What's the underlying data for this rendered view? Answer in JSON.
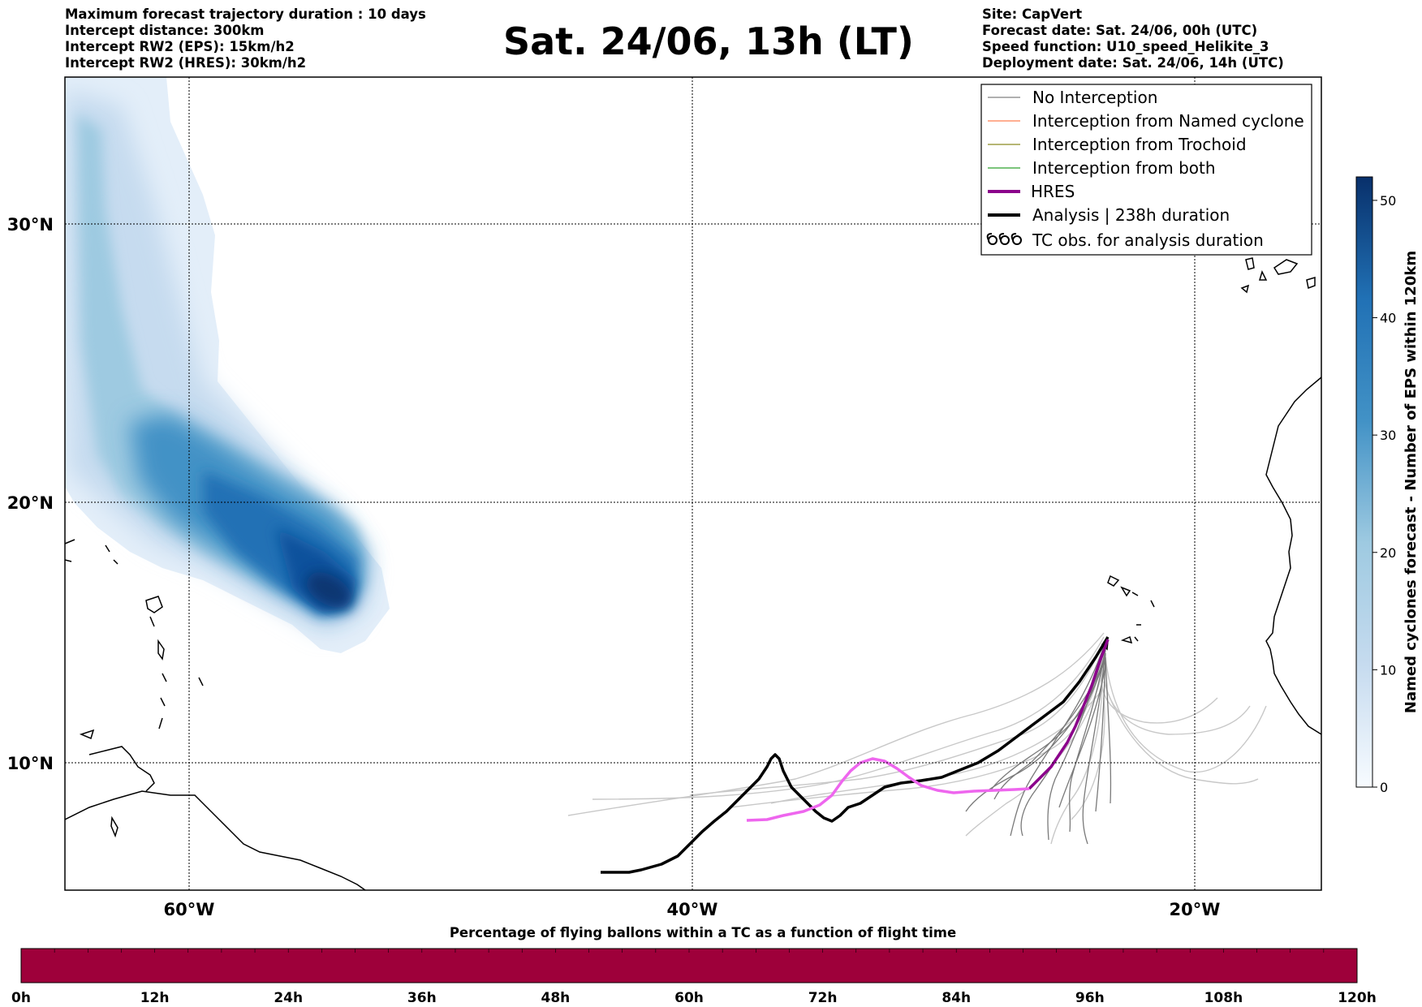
{
  "title": "Sat. 24/06, 13h (LT)",
  "info_left": [
    "Maximum forecast trajectory duration : 10 days",
    "Intercept distance: 300km",
    "Intercept RW2 (EPS):  15km/h2",
    "Intercept RW2 (HRES): 30km/h2"
  ],
  "info_right": [
    "Site: CapVert",
    "Forecast date: Sat. 24/06, 00h (UTC)",
    "Speed function: U10_speed_Helikite_3",
    "Deployment date: Sat. 24/06, 14h (UTC)"
  ],
  "map": {
    "lon_ticks": [
      {
        "value": -60,
        "label": "60°W"
      },
      {
        "value": -40,
        "label": "40°W"
      },
      {
        "value": -20,
        "label": "20°W"
      }
    ],
    "lat_ticks": [
      {
        "value": 30,
        "label": "30°N"
      },
      {
        "value": 20,
        "label": "20°N"
      },
      {
        "value": 10,
        "label": "10°N"
      }
    ],
    "lon_range": [
      -65,
      -15
    ],
    "lat_range": [
      5.4,
      34.8
    ],
    "grid": "dotted",
    "colors": {
      "no_interception": "#808080",
      "named_cyclone": "#ff7f50",
      "trochoid": "#8b8b22",
      "both": "#2ca02c",
      "hres": "#8b008b",
      "hres_highlight": "#ee66ee",
      "analysis": "#000000",
      "density_low": "#deebf7",
      "density_high": "#08306b"
    }
  },
  "legend": {
    "position": "top-right",
    "entries": [
      {
        "label": "No Interception",
        "color": "#808080",
        "style": "thin",
        "icon": ""
      },
      {
        "label": "Interception from Named cyclone",
        "color": "#ff7f50",
        "style": "thin",
        "icon": ""
      },
      {
        "label": "Interception from Trochoid",
        "color": "#8b8b22",
        "style": "thin",
        "icon": ""
      },
      {
        "label": "Interception from both",
        "color": "#2ca02c",
        "style": "thin",
        "icon": ""
      },
      {
        "label": "HRES",
        "color": "#8b008b",
        "style": "thick",
        "icon": ""
      },
      {
        "label": "Analysis | 238h duration",
        "color": "#000000",
        "style": "thick",
        "icon": ""
      },
      {
        "label": "TC obs. for analysis duration",
        "color": "#000000",
        "style": "marker",
        "icon": "cyclone-symbol-icon"
      }
    ]
  },
  "colorbar": {
    "label": "Named cyclones forecast - Number of EPS within 120km",
    "min": 0,
    "max": 52,
    "ticks": [
      0,
      10,
      20,
      30,
      40,
      50
    ],
    "tick_labels": [
      "0",
      "10",
      "20",
      "30",
      "40",
      "50"
    ]
  },
  "timebar": {
    "title": "Percentage of flying ballons within a TC as a function of flight time",
    "ticks": [
      "0h",
      "12h",
      "24h",
      "36h",
      "48h",
      "60h",
      "72h",
      "84h",
      "96h",
      "108h",
      "120h"
    ],
    "fill_color": "#9e003a",
    "percentage_by_12h": [
      100,
      100,
      100,
      100,
      100,
      100,
      100,
      100,
      100,
      100
    ]
  }
}
